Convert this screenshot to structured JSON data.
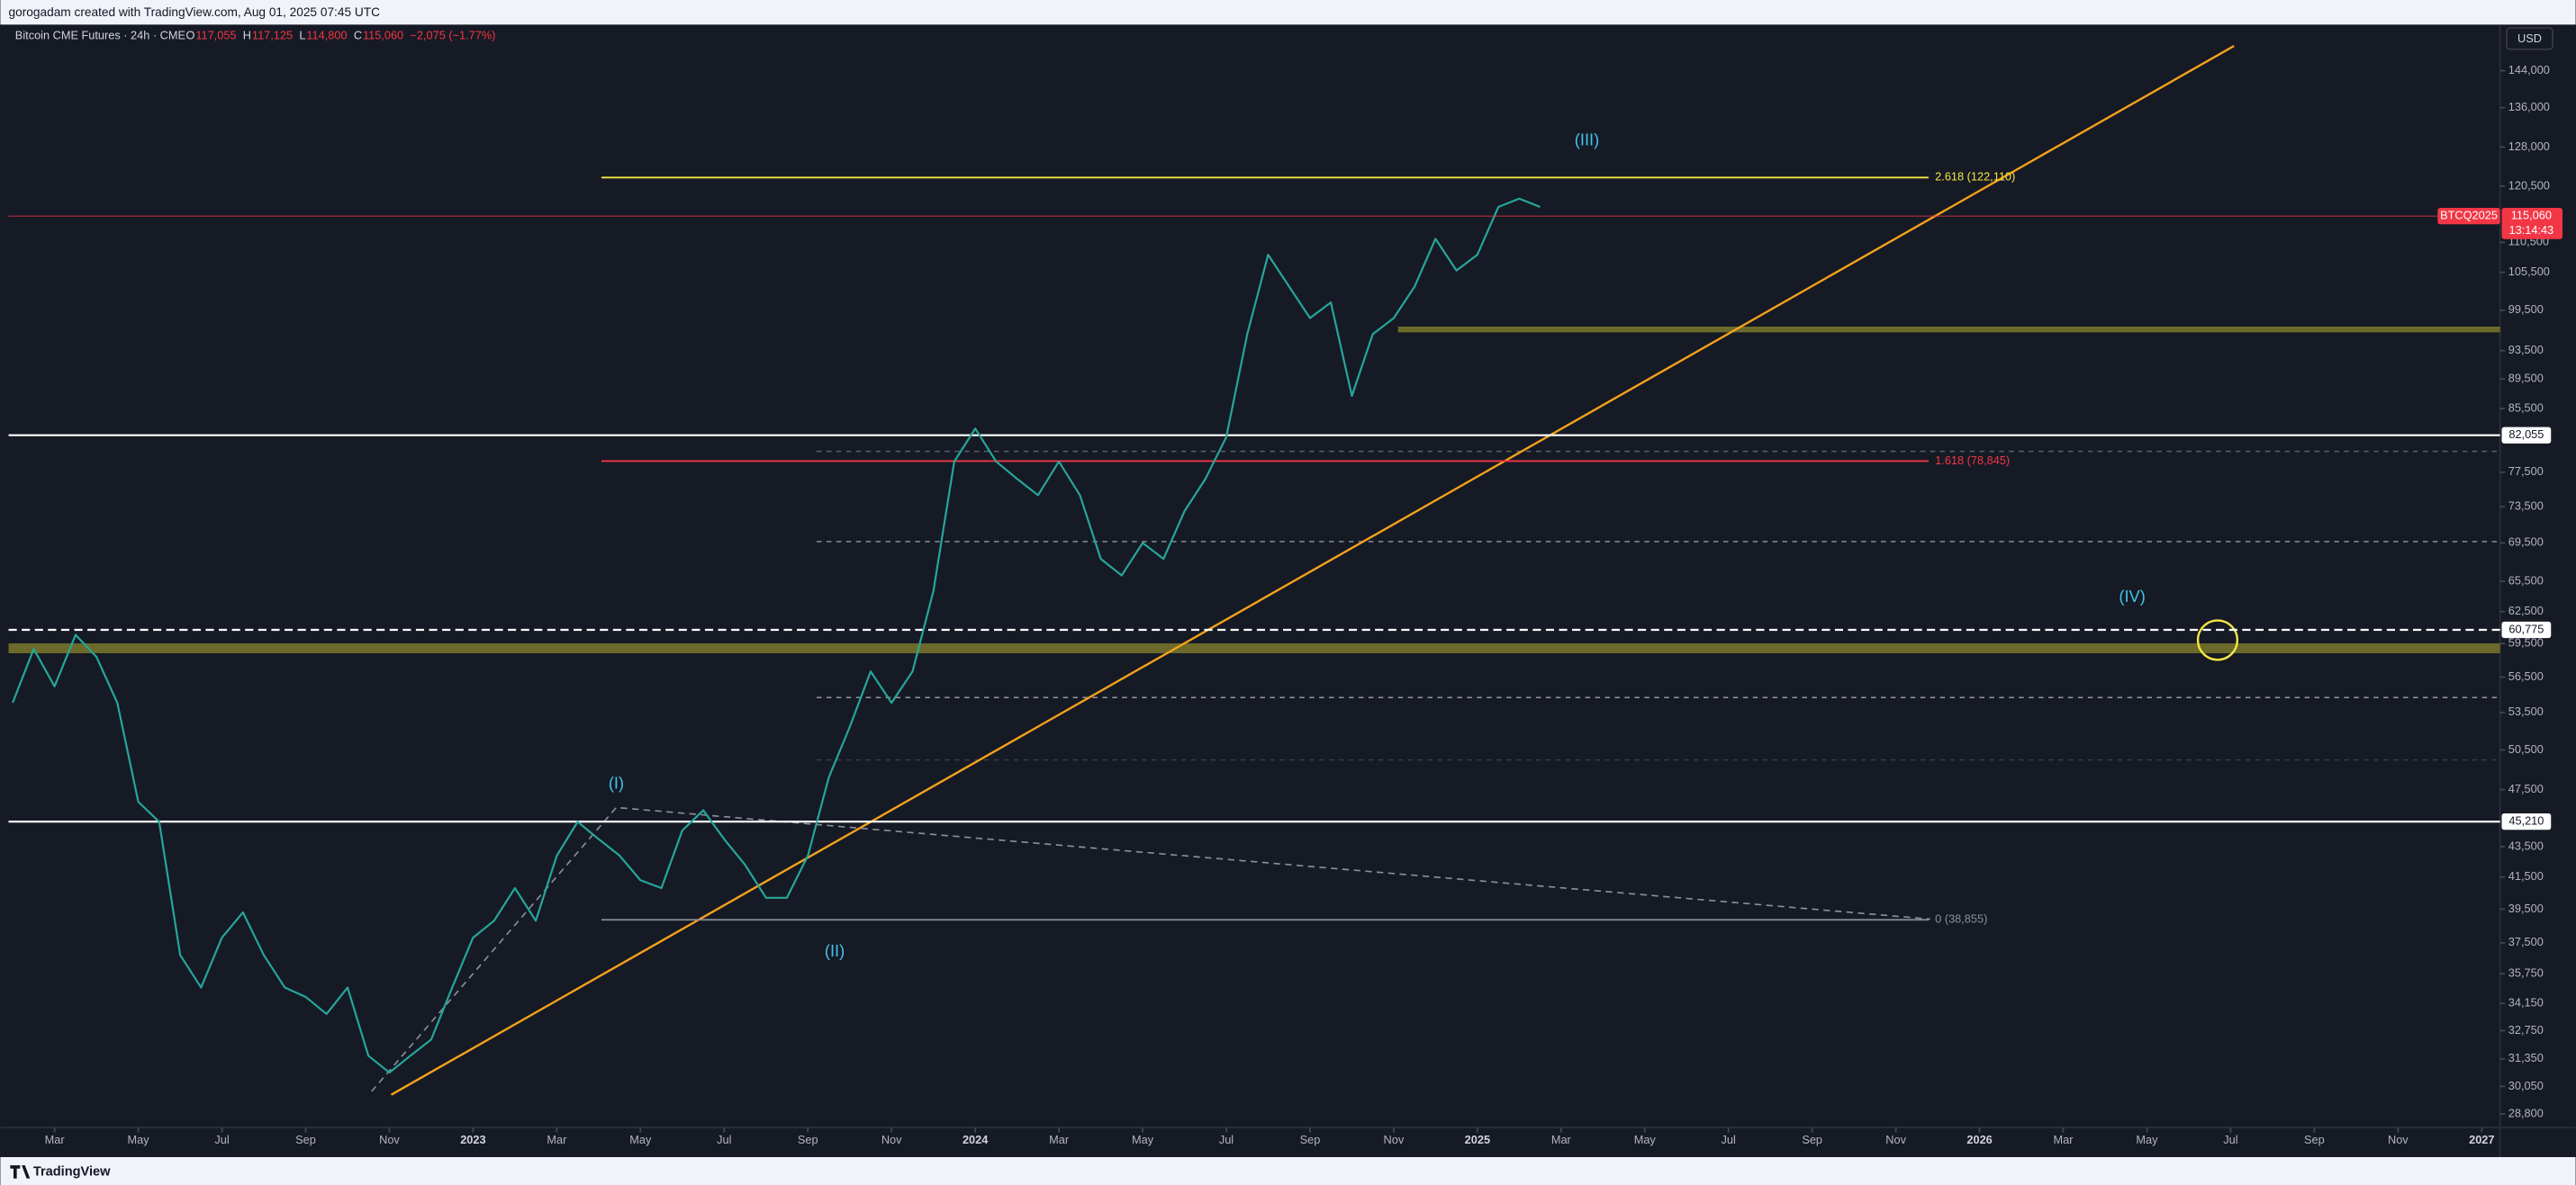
{
  "header": {
    "credit": "gorogadam created with TradingView.com, Aug 01, 2025 07:45 UTC"
  },
  "legend": {
    "instrument": "Bitcoin CME Futures · 24h · CME",
    "ohlc": [
      {
        "key": "O",
        "value": "117,055"
      },
      {
        "key": "H",
        "value": "117,125"
      },
      {
        "key": "L",
        "value": "114,800"
      },
      {
        "key": "C",
        "value": "115,060"
      }
    ],
    "change": "−2,075 (−1.77%)"
  },
  "currency_button": "USD",
  "footer": {
    "brand": "TradingView"
  },
  "chart_data": {
    "type": "line",
    "log_scale": true,
    "xlim": [
      0.9,
      60.36
    ],
    "ylim": [
      28200,
      154600
    ],
    "xticks": [
      {
        "value": 2,
        "label": "Mar"
      },
      {
        "value": 4,
        "label": "May"
      },
      {
        "value": 6,
        "label": "Jul"
      },
      {
        "value": 8,
        "label": "Sep"
      },
      {
        "value": 10,
        "label": "Nov"
      },
      {
        "value": 12,
        "label": "2023"
      },
      {
        "value": 14,
        "label": "Mar"
      },
      {
        "value": 16,
        "label": "May"
      },
      {
        "value": 18,
        "label": "Jul"
      },
      {
        "value": 20,
        "label": "Sep"
      },
      {
        "value": 22,
        "label": "Nov"
      },
      {
        "value": 24,
        "label": "2024"
      },
      {
        "value": 26,
        "label": "Mar"
      },
      {
        "value": 28,
        "label": "May"
      },
      {
        "value": 30,
        "label": "Jul"
      },
      {
        "value": 32,
        "label": "Sep"
      },
      {
        "value": 34,
        "label": "Nov"
      },
      {
        "value": 36,
        "label": "2025"
      },
      {
        "value": 38,
        "label": "Mar"
      },
      {
        "value": 40,
        "label": "May"
      },
      {
        "value": 42,
        "label": "Jul"
      },
      {
        "value": 44,
        "label": "Sep"
      },
      {
        "value": 46,
        "label": "Nov"
      },
      {
        "value": 48,
        "label": "2026"
      },
      {
        "value": 50,
        "label": "Mar"
      },
      {
        "value": 52,
        "label": "May"
      },
      {
        "value": 54,
        "label": "Jul"
      },
      {
        "value": 56,
        "label": "Sep"
      },
      {
        "value": 58,
        "label": "Nov"
      },
      {
        "value": 60,
        "label": "2027"
      }
    ],
    "yticks": [
      {
        "value": 144000,
        "label": "144,000"
      },
      {
        "value": 136000,
        "label": "136,000"
      },
      {
        "value": 128000,
        "label": "128,000"
      },
      {
        "value": 120500,
        "label": "120,500"
      },
      {
        "value": 110500,
        "label": "110,500"
      },
      {
        "value": 105500,
        "label": "105,500"
      },
      {
        "value": 99500,
        "label": "99,500"
      },
      {
        "value": 93500,
        "label": "93,500"
      },
      {
        "value": 89500,
        "label": "89,500"
      },
      {
        "value": 85500,
        "label": "85,500"
      },
      {
        "value": 77500,
        "label": "77,500"
      },
      {
        "value": 73500,
        "label": "73,500"
      },
      {
        "value": 69500,
        "label": "69,500"
      },
      {
        "value": 65500,
        "label": "65,500"
      },
      {
        "value": 62500,
        "label": "62,500"
      },
      {
        "value": 59500,
        "label": "59,500"
      },
      {
        "value": 56500,
        "label": "56,500"
      },
      {
        "value": 53500,
        "label": "53,500"
      },
      {
        "value": 50500,
        "label": "50,500"
      },
      {
        "value": 47500,
        "label": "47,500"
      },
      {
        "value": 43500,
        "label": "43,500"
      },
      {
        "value": 41500,
        "label": "41,500"
      },
      {
        "value": 39500,
        "label": "39,500"
      },
      {
        "value": 37500,
        "label": "37,500"
      },
      {
        "value": 35750,
        "label": "35,750"
      },
      {
        "value": 34150,
        "label": "34,150"
      },
      {
        "value": 32750,
        "label": "32,750"
      },
      {
        "value": 31350,
        "label": "31,350"
      },
      {
        "value": 30050,
        "label": "30,050"
      },
      {
        "value": 28800,
        "label": "28,800"
      }
    ],
    "series": [
      {
        "color": "#26a69a",
        "x": [
          1,
          1.5,
          2,
          2.5,
          3,
          3.5,
          4,
          4.5,
          5,
          5.5,
          6,
          6.5,
          7,
          7.5,
          8,
          8.5,
          9,
          9.5,
          10,
          10.5,
          11,
          11.5,
          12,
          12.5,
          13,
          13.5,
          14,
          14.5,
          15,
          15.5,
          16,
          16.5,
          17,
          17.5,
          18,
          18.5,
          19,
          19.5,
          20,
          20.5,
          21,
          21.5,
          22,
          22.5,
          23,
          23.5,
          24,
          24.5,
          25,
          25.5,
          26,
          26.5,
          27,
          27.5,
          28,
          28.5,
          29,
          29.5,
          30,
          30.5,
          31,
          31.5,
          32,
          32.5,
          33,
          33.5,
          34,
          34.5,
          35,
          35.5,
          36,
          36.5,
          37,
          37.5
        ],
        "values": [
          54300,
          59000,
          55700,
          60300,
          58300,
          54300,
          46600,
          45200,
          36800,
          35000,
          37800,
          39300,
          36800,
          35000,
          34500,
          33600,
          35000,
          31500,
          30700,
          31500,
          32300,
          35000,
          37800,
          38800,
          40800,
          38800,
          42900,
          45200,
          44000,
          42900,
          41300,
          40800,
          44600,
          46000,
          44000,
          42300,
          40200,
          40200,
          42900,
          48400,
          52300,
          57000,
          54300,
          57000,
          64500,
          78800,
          82900,
          78800,
          76700,
          74800,
          78800,
          74800,
          67800,
          66100,
          69500,
          67800,
          73000,
          76700,
          81800,
          95900,
          108400,
          103200,
          98300,
          100700,
          87200,
          95900,
          98300,
          103200,
          111100,
          105800,
          108400,
          116700,
          118200,
          116700
        ]
      }
    ],
    "levels": [
      {
        "value": 82055,
        "label": "82,055",
        "color": "#ffffff",
        "style": "solid"
      },
      {
        "value": 60775,
        "label": "60,775",
        "color": "#ffffff",
        "style": "dashed"
      },
      {
        "value": 45210,
        "label": "45,210",
        "color": "#ffffff",
        "style": "solid"
      }
    ],
    "fib_levels": [
      {
        "value": 122110,
        "label": "2.618 (122,110)",
        "color": "#f5e642"
      },
      {
        "value": 78845,
        "label": "1.618 (78,845)",
        "color": "#f23645"
      },
      {
        "value": 38855,
        "label": "0 (38,855)",
        "color": "#8a8f9a"
      }
    ],
    "last_price": {
      "symbol": "BTCQ2025",
      "value": 115060,
      "label": "115,060",
      "countdown": "13:14:43",
      "color": "#f23645"
    },
    "wave_labels": [
      "(I)",
      "(II)",
      "(III)",
      "(IV)"
    ]
  }
}
